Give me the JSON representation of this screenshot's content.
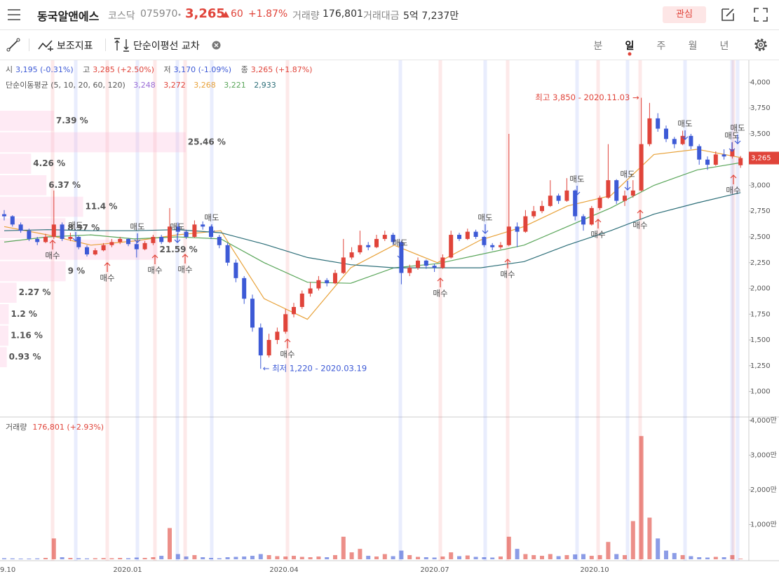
{
  "header": {
    "name": "동국알앤에스",
    "market": "코스닥",
    "code": "075970",
    "price": "3,265",
    "change": "60",
    "change_pct": "+1.87%",
    "volume_label": "거래량",
    "volume": "176,801",
    "amount_label": "거래대금",
    "amount": "5억 7,237만",
    "watch": "관심"
  },
  "toolbar": {
    "indicators": "보조지표",
    "cross": "단순이평선 교차",
    "periods": [
      "분",
      "일",
      "주",
      "월",
      "년"
    ]
  },
  "info": {
    "open_label": "시",
    "open": "3,195 (-0.31%)",
    "high_label": "고",
    "high": "3,285 (+2.50%)",
    "low_label": "저",
    "low": "3,170 (-1.09%)",
    "close_label": "종",
    "close": "3,265 (+1.87%)",
    "ma_label": "단순이동평균 (5, 10, 20, 60, 120)",
    "ma_values": [
      "3,248",
      "3,272",
      "3,268",
      "3,221",
      "2,933"
    ],
    "volume_label": "거래량",
    "volume": "176,801 (+2.93%)"
  },
  "chart": {
    "ylim": [
      800,
      4200
    ],
    "yticks": [
      {
        "value": 1000,
        "label": "1,000"
      },
      {
        "value": 1250,
        "label": "1,250"
      },
      {
        "value": 1500,
        "label": "1,500"
      },
      {
        "value": 1750,
        "label": "1,750"
      },
      {
        "value": 2000,
        "label": "2,000"
      },
      {
        "value": 2250,
        "label": "2,250"
      },
      {
        "value": 2500,
        "label": "2,500"
      },
      {
        "value": 2750,
        "label": "2,750"
      },
      {
        "value": 3000,
        "label": "3,000"
      },
      {
        "value": 3250,
        "label": "3,250"
      },
      {
        "value": 3500,
        "label": "3,500"
      },
      {
        "value": 3750,
        "label": "3,750"
      },
      {
        "value": 4000,
        "label": "4,000"
      }
    ],
    "vlim": [
      0,
      4200
    ],
    "vticks": [
      {
        "value": 1000,
        "label": "1,000만"
      },
      {
        "value": 2000,
        "label": "2,000만"
      },
      {
        "value": 3000,
        "label": "3,000만"
      },
      {
        "value": 4000,
        "label": "4,000만"
      }
    ],
    "x_labels": [
      "9.10",
      "2020.01",
      "2020.04",
      "2020.07",
      "2020.10"
    ],
    "up_color": "#e0443a",
    "down_color": "#3d5ad6",
    "candles": [
      [
        2720,
        2760,
        2660,
        2700
      ],
      [
        2700,
        2710,
        2600,
        2620
      ],
      [
        2620,
        2640,
        2540,
        2560
      ],
      [
        2560,
        2580,
        2460,
        2480
      ],
      [
        2480,
        2500,
        2420,
        2450
      ],
      [
        2450,
        2530,
        2440,
        2500
      ],
      [
        2500,
        2950,
        2480,
        2620
      ],
      [
        2620,
        2640,
        2460,
        2480
      ],
      [
        2480,
        2540,
        2460,
        2500
      ],
      [
        2500,
        2510,
        2380,
        2400
      ],
      [
        2400,
        2420,
        2310,
        2330
      ],
      [
        2330,
        2390,
        2320,
        2370
      ],
      [
        2370,
        2440,
        2360,
        2420
      ],
      [
        2420,
        2480,
        2400,
        2450
      ],
      [
        2450,
        2500,
        2430,
        2480
      ],
      [
        2480,
        2490,
        2410,
        2430
      ],
      [
        2430,
        2450,
        2300,
        2380
      ],
      [
        2380,
        2460,
        2370,
        2440
      ],
      [
        2440,
        2520,
        2420,
        2500
      ],
      [
        2500,
        2520,
        2430,
        2450
      ],
      [
        2450,
        2780,
        2440,
        2600
      ],
      [
        2600,
        2640,
        2520,
        2550
      ],
      [
        2550,
        2570,
        2480,
        2500
      ],
      [
        2500,
        2660,
        2490,
        2620
      ],
      [
        2620,
        2650,
        2570,
        2600
      ],
      [
        2600,
        2610,
        2480,
        2500
      ],
      [
        2500,
        2520,
        2390,
        2420
      ],
      [
        2420,
        2440,
        2220,
        2250
      ],
      [
        2250,
        2280,
        2060,
        2100
      ],
      [
        2100,
        2120,
        1850,
        1900
      ],
      [
        1900,
        1940,
        1580,
        1620
      ],
      [
        1620,
        1660,
        1220,
        1350
      ],
      [
        1350,
        1560,
        1330,
        1500
      ],
      [
        1500,
        1620,
        1460,
        1580
      ],
      [
        1580,
        1800,
        1560,
        1750
      ],
      [
        1750,
        1860,
        1720,
        1820
      ],
      [
        1820,
        1980,
        1800,
        1950
      ],
      [
        1950,
        2060,
        1920,
        2000
      ],
      [
        2000,
        2120,
        1980,
        2080
      ],
      [
        2080,
        2100,
        2020,
        2050
      ],
      [
        2050,
        2180,
        2040,
        2150
      ],
      [
        2150,
        2480,
        2140,
        2300
      ],
      [
        2300,
        2400,
        2280,
        2350
      ],
      [
        2350,
        2560,
        2330,
        2420
      ],
      [
        2420,
        2450,
        2370,
        2400
      ],
      [
        2400,
        2520,
        2390,
        2480
      ],
      [
        2480,
        2560,
        2460,
        2520
      ],
      [
        2520,
        2540,
        2420,
        2450
      ],
      [
        2450,
        2460,
        2040,
        2150
      ],
      [
        2150,
        2230,
        2120,
        2200
      ],
      [
        2200,
        2300,
        2180,
        2270
      ],
      [
        2270,
        2280,
        2190,
        2220
      ],
      [
        2220,
        2240,
        2160,
        2200
      ],
      [
        2200,
        2330,
        2190,
        2300
      ],
      [
        2300,
        2560,
        2290,
        2520
      ],
      [
        2520,
        2540,
        2460,
        2480
      ],
      [
        2480,
        2580,
        2470,
        2550
      ],
      [
        2550,
        2570,
        2480,
        2500
      ],
      [
        2500,
        2510,
        2400,
        2420
      ],
      [
        2420,
        2440,
        2370,
        2400
      ],
      [
        2400,
        2450,
        2380,
        2420
      ],
      [
        2420,
        3500,
        2410,
        2600
      ],
      [
        2600,
        2640,
        2400,
        2550
      ],
      [
        2550,
        2760,
        2540,
        2700
      ],
      [
        2700,
        2800,
        2680,
        2750
      ],
      [
        2750,
        2850,
        2730,
        2800
      ],
      [
        2800,
        3050,
        2790,
        2900
      ],
      [
        2900,
        2920,
        2820,
        2850
      ],
      [
        2850,
        3070,
        2840,
        2950
      ],
      [
        2950,
        2960,
        2660,
        2700
      ],
      [
        2700,
        2720,
        2560,
        2620
      ],
      [
        2620,
        2800,
        2610,
        2780
      ],
      [
        2780,
        2900,
        2760,
        2880
      ],
      [
        2880,
        3400,
        2870,
        3050
      ],
      [
        3050,
        3060,
        2820,
        2850
      ],
      [
        2850,
        2950,
        2800,
        2900
      ],
      [
        2900,
        3050,
        2880,
        2950
      ],
      [
        2950,
        3850,
        2940,
        3400
      ],
      [
        3400,
        3800,
        3380,
        3650
      ],
      [
        3650,
        3700,
        3520,
        3550
      ],
      [
        3550,
        3580,
        3420,
        3450
      ],
      [
        3450,
        3470,
        3360,
        3400
      ],
      [
        3400,
        3530,
        3390,
        3480
      ],
      [
        3480,
        3500,
        3350,
        3380
      ],
      [
        3380,
        3400,
        3200,
        3250
      ],
      [
        3250,
        3280,
        3150,
        3200
      ],
      [
        3200,
        3330,
        3190,
        3300
      ],
      [
        3300,
        3350,
        3250,
        3280
      ],
      [
        3280,
        3420,
        3260,
        3350
      ],
      [
        3195,
        3285,
        3170,
        3265
      ]
    ],
    "volume": [
      30,
      25,
      20,
      20,
      25,
      40,
      600,
      60,
      40,
      30,
      25,
      30,
      35,
      30,
      40,
      30,
      50,
      40,
      60,
      100,
      900,
      150,
      80,
      120,
      60,
      40,
      30,
      60,
      70,
      80,
      100,
      150,
      120,
      90,
      80,
      100,
      70,
      60,
      80,
      60,
      120,
      650,
      200,
      300,
      100,
      80,
      150,
      90,
      250,
      120,
      70,
      60,
      50,
      80,
      200,
      90,
      110,
      70,
      60,
      50,
      80,
      650,
      300,
      150,
      120,
      100,
      150,
      90,
      120,
      140,
      150,
      100,
      120,
      500,
      150,
      120,
      1100,
      3550,
      1200,
      600,
      250,
      180,
      120,
      90,
      60,
      50,
      70,
      60,
      120,
      17.68
    ],
    "ma_series": [
      {
        "name": "20",
        "color": "#e8a23a",
        "values": [
          2600,
          2520,
          2420,
          2460,
          2520,
          2560,
          1900,
          1700,
          2200,
          2420,
          2250,
          2470,
          2600,
          2800,
          2900,
          3300,
          3350,
          3270
        ]
      },
      {
        "name": "60",
        "color": "#5aa65a",
        "values": [
          2450,
          2500,
          2520,
          2480,
          2500,
          2480,
          2250,
          2060,
          2050,
          2200,
          2240,
          2330,
          2420,
          2600,
          2780,
          3000,
          3150,
          3220
        ]
      },
      {
        "name": "120",
        "color": "#2c6e78",
        "values": [
          2560,
          2570,
          2560,
          2560,
          2570,
          2540,
          2430,
          2300,
          2230,
          2200,
          2200,
          2200,
          2260,
          2420,
          2560,
          2720,
          2830,
          2930
        ]
      }
    ],
    "profile": {
      "values": [
        7.39,
        25.46,
        4.26,
        6.37,
        11.4,
        8.97,
        21.59,
        9,
        2.27,
        1.2,
        1.16,
        0.93
      ],
      "value_labels": [
        "7.39 %",
        "25.46 %",
        "4.26 %",
        "6.37 %",
        "11.4 %",
        "8.97 %",
        "21.59 %",
        "9 %",
        "2.27 %",
        "1.2 %",
        "1.16 %",
        "0.93 %"
      ]
    },
    "high_note": "최고 3,850 - 2020.11.03 →",
    "low_note": "← 최저 1,220 - 2020.03.19",
    "buy_signals": [
      "매수",
      "매수",
      "매수",
      "매수",
      "매수",
      "매수",
      "매수",
      "매수",
      "매수",
      "매수"
    ],
    "sell_signals": [
      "매도",
      "매도",
      "매도",
      "매도",
      "매도",
      "매도",
      "매도",
      "매도",
      "매도",
      "매도",
      "매도"
    ]
  }
}
